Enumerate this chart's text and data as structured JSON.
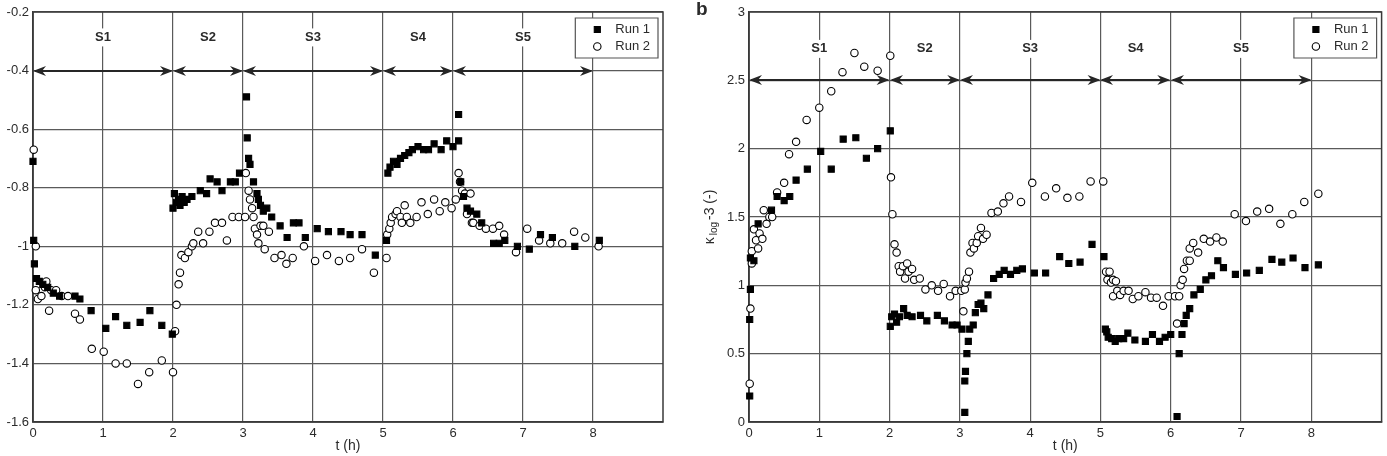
{
  "chart_data": [
    {
      "type": "scatter",
      "xlabel": "t (h)",
      "xlim": [
        0,
        9
      ],
      "xticks": [
        0,
        1,
        2,
        3,
        4,
        5,
        6,
        7,
        8
      ],
      "ylim": [
        -1.6,
        -0.2
      ],
      "yticks": [
        -0.2,
        -0.4,
        -0.6,
        -0.8,
        -1,
        -1.2,
        -1.4,
        -1.6
      ],
      "grid": true,
      "legend": "top right",
      "annotations": [
        "S1",
        "S2",
        "S3",
        "S4",
        "S5"
      ],
      "series": [
        {
          "name": "Run 1",
          "color": "#000000",
          "marker": "square",
          "x": [
            0,
            0.01,
            0.02,
            0.05,
            0.09,
            0.14,
            0.21,
            0.29,
            0.38,
            0.6,
            0.67,
            0.83,
            1.04,
            1.18,
            1.34,
            1.53,
            1.67,
            1.84,
            1.99,
            2,
            2.02,
            2.05,
            2.08,
            2.1,
            2.13,
            2.16,
            2.2,
            2.27,
            2.39,
            2.48,
            2.53,
            2.63,
            2.7,
            2.82,
            2.89,
            2.95,
            3.05,
            3.06,
            3.08,
            3.1,
            3.15,
            3.2,
            3.22,
            3.25,
            3.29,
            3.34,
            3.41,
            3.53,
            3.63,
            3.72,
            3.8,
            3.89,
            4.06,
            4.22,
            4.4,
            4.53,
            4.7,
            4.89,
            5.05,
            5.07,
            5.1,
            5.15,
            5.2,
            5.25,
            5.31,
            5.37,
            5.42,
            5.5,
            5.58,
            5.65,
            5.73,
            5.83,
            5.91,
            6,
            6.08,
            6.08,
            6.11,
            6.15,
            6.2,
            6.25,
            6.34,
            6.41,
            6.58,
            6.66,
            6.74,
            6.92,
            7.09,
            7.25,
            7.42,
            7.74,
            8.09
          ],
          "values": [
            -0.71,
            -0.98,
            -1.06,
            -1.11,
            -1.12,
            -1.13,
            -1.14,
            -1.16,
            -1.17,
            -1.17,
            -1.18,
            -1.22,
            -1.28,
            -1.24,
            -1.27,
            -1.26,
            -1.22,
            -1.27,
            -1.3,
            -0.87,
            -0.82,
            -0.85,
            -0.84,
            -0.86,
            -0.83,
            -0.85,
            -0.84,
            -0.83,
            -0.81,
            -0.82,
            -0.77,
            -0.78,
            -0.81,
            -0.78,
            -0.78,
            -0.75,
            -0.49,
            -0.63,
            -0.7,
            -0.72,
            -0.78,
            -0.82,
            -0.84,
            -0.86,
            -0.88,
            -0.87,
            -0.9,
            -0.93,
            -0.97,
            -0.92,
            -0.92,
            -0.97,
            -0.94,
            -0.95,
            -0.95,
            -0.96,
            -0.96,
            -1.03,
            -0.98,
            -0.75,
            -0.73,
            -0.71,
            -0.72,
            -0.7,
            -0.69,
            -0.68,
            -0.67,
            -0.66,
            -0.67,
            -0.67,
            -0.65,
            -0.67,
            -0.64,
            -0.66,
            -0.64,
            -0.55,
            -0.78,
            -0.83,
            -0.87,
            -0.88,
            -0.89,
            -0.92,
            -0.99,
            -0.99,
            -0.98,
            -1,
            -1.01,
            -0.96,
            -0.97,
            -1,
            -0.98
          ]
        },
        {
          "name": "Run 2",
          "color": "#000000",
          "marker": "circle",
          "x": [
            0.01,
            0.04,
            0.04,
            0.07,
            0.12,
            0.17,
            0.19,
            0.23,
            0.26,
            0.33,
            0.41,
            0.5,
            0.6,
            0.67,
            0.84,
            1.01,
            1.18,
            1.34,
            1.5,
            1.66,
            1.84,
            2,
            2.03,
            2.05,
            2.08,
            2.1,
            2.12,
            2.17,
            2.22,
            2.27,
            2.29,
            2.36,
            2.43,
            2.52,
            2.6,
            2.7,
            2.77,
            2.85,
            2.94,
            3.03,
            3.04,
            3.08,
            3.1,
            3.13,
            3.15,
            3.17,
            3.2,
            3.22,
            3.25,
            3.29,
            3.31,
            3.37,
            3.45,
            3.55,
            3.62,
            3.71,
            3.87,
            4.03,
            4.2,
            4.37,
            4.53,
            4.7,
            4.87,
            5.05,
            5.06,
            5.09,
            5.11,
            5.13,
            5.18,
            5.2,
            5.25,
            5.27,
            5.31,
            5.34,
            5.39,
            5.48,
            5.55,
            5.64,
            5.73,
            5.81,
            5.89,
            5.98,
            6.04,
            6.08,
            6.1,
            6.13,
            6.17,
            6.2,
            6.25,
            6.27,
            6.29,
            6.38,
            6.47,
            6.57,
            6.66,
            6.73,
            6.9,
            7.06,
            7.23,
            7.39,
            7.56,
            7.73,
            7.89,
            8.08
          ],
          "values": [
            -0.67,
            -1,
            -1.15,
            -1.18,
            -1.17,
            -1.14,
            -1.12,
            -1.22,
            -1.15,
            -1.15,
            -1.17,
            -1.17,
            -1.23,
            -1.25,
            -1.35,
            -1.36,
            -1.4,
            -1.4,
            -1.47,
            -1.43,
            -1.39,
            -1.43,
            -1.29,
            -1.2,
            -1.13,
            -1.09,
            -1.03,
            -1.04,
            -1.02,
            -1,
            -0.99,
            -0.95,
            -0.99,
            -0.95,
            -0.92,
            -0.92,
            -0.98,
            -0.9,
            -0.9,
            -0.9,
            -0.75,
            -0.81,
            -0.84,
            -0.87,
            -0.9,
            -0.94,
            -0.96,
            -0.99,
            -0.93,
            -0.93,
            -1.01,
            -0.95,
            -1.04,
            -1.03,
            -1.06,
            -1.04,
            -1,
            -1.05,
            -1.03,
            -1.05,
            -1.04,
            -1.01,
            -1.09,
            -1.04,
            -0.96,
            -0.94,
            -0.92,
            -0.9,
            -0.89,
            -0.88,
            -0.9,
            -0.92,
            -0.86,
            -0.9,
            -0.92,
            -0.9,
            -0.85,
            -0.89,
            -0.84,
            -0.88,
            -0.85,
            -0.87,
            -0.84,
            -0.75,
            -0.78,
            -0.81,
            -0.82,
            -0.89,
            -0.82,
            -0.92,
            -0.92,
            -0.93,
            -0.94,
            -0.94,
            -0.93,
            -0.96,
            -1.02,
            -0.94,
            -0.98,
            -0.99,
            -0.99,
            -0.95,
            -0.97,
            -1
          ]
        }
      ]
    },
    {
      "type": "scatter",
      "title": "b",
      "xlabel": "t (h)",
      "ylabel": "κ$_{log}$-3 (-)",
      "xlim": [
        0,
        9
      ],
      "xticks": [
        0,
        1,
        2,
        3,
        4,
        5,
        6,
        7,
        8
      ],
      "ylim": [
        0,
        3
      ],
      "yticks": [
        0,
        0.5,
        1,
        1.5,
        2,
        2.5,
        3
      ],
      "grid": true,
      "legend": "top right",
      "annotations": [
        "S1",
        "S2",
        "S3",
        "S4",
        "S5"
      ],
      "series": [
        {
          "name": "Run 1",
          "color": "#000000",
          "marker": "square",
          "x": [
            0.01,
            0.01,
            0.02,
            0.02,
            0.07,
            0.13,
            0.32,
            0.4,
            0.5,
            0.58,
            0.67,
            0.83,
            1.02,
            1.17,
            1.34,
            1.52,
            1.67,
            1.83,
            2.01,
            2.01,
            2.03,
            2.07,
            2.1,
            2.14,
            2.2,
            2.25,
            2.32,
            2.44,
            2.53,
            2.68,
            2.78,
            2.89,
            2.96,
            3.03,
            3.07,
            3.07,
            3.08,
            3.1,
            3.12,
            3.14,
            3.19,
            3.22,
            3.26,
            3.3,
            3.34,
            3.4,
            3.48,
            3.56,
            3.63,
            3.72,
            3.81,
            3.89,
            4.06,
            4.22,
            4.42,
            4.55,
            4.71,
            4.88,
            5.05,
            5.07,
            5.09,
            5.11,
            5.16,
            5.21,
            5.26,
            5.33,
            5.39,
            5.49,
            5.64,
            5.74,
            5.84,
            5.92,
            6,
            6.09,
            6.12,
            6.16,
            6.19,
            6.22,
            6.27,
            6.33,
            6.42,
            6.5,
            6.58,
            6.67,
            6.75,
            6.92,
            7.08,
            7.26,
            7.44,
            7.58,
            7.74,
            7.91,
            8.1
          ],
          "values": [
            0.19,
            0.75,
            0.97,
            1.2,
            1.18,
            1.45,
            1.55,
            1.65,
            1.62,
            1.65,
            1.77,
            1.85,
            1.98,
            1.85,
            2.07,
            2.08,
            1.93,
            2,
            2.13,
            0.7,
            0.77,
            0.79,
            0.73,
            0.77,
            0.83,
            0.78,
            0.77,
            0.78,
            0.74,
            0.78,
            0.74,
            0.71,
            0.71,
            0.68,
            0.07,
            0.3,
            0.37,
            0.5,
            0.59,
            0.68,
            0.71,
            0.8,
            0.86,
            0.87,
            0.83,
            0.93,
            1.05,
            1.08,
            1.11,
            1.08,
            1.11,
            1.12,
            1.09,
            1.09,
            1.21,
            1.16,
            1.17,
            1.3,
            1.21,
            0.68,
            0.66,
            0.62,
            0.61,
            0.59,
            0.61,
            0.61,
            0.65,
            0.6,
            0.59,
            0.64,
            0.59,
            0.62,
            0.64,
            0.04,
            0.5,
            0.64,
            0.72,
            0.78,
            0.83,
            0.93,
            0.97,
            1.04,
            1.07,
            1.18,
            1.13,
            1.08,
            1.09,
            1.11,
            1.19,
            1.17,
            1.2,
            1.13,
            1.15
          ]
        },
        {
          "name": "Run 2",
          "color": "#000000",
          "marker": "circle",
          "x": [
            0.01,
            0.02,
            0.04,
            0.04,
            0.07,
            0.1,
            0.13,
            0.15,
            0.19,
            0.21,
            0.25,
            0.29,
            0.33,
            0.4,
            0.5,
            0.57,
            0.67,
            0.82,
            1,
            1.17,
            1.33,
            1.5,
            1.64,
            1.83,
            2.01,
            2.02,
            2.04,
            2.07,
            2.1,
            2.13,
            2.15,
            2.19,
            2.22,
            2.25,
            2.27,
            2.32,
            2.35,
            2.43,
            2.51,
            2.6,
            2.69,
            2.77,
            2.86,
            2.94,
            3.02,
            3.05,
            3.07,
            3.08,
            3.1,
            3.13,
            3.15,
            3.18,
            3.2,
            3.24,
            3.26,
            3.3,
            3.33,
            3.38,
            3.45,
            3.54,
            3.62,
            3.7,
            3.87,
            4.03,
            4.21,
            4.37,
            4.53,
            4.7,
            4.86,
            5.04,
            5.08,
            5.1,
            5.13,
            5.15,
            5.18,
            5.18,
            5.22,
            5.24,
            5.28,
            5.33,
            5.4,
            5.46,
            5.54,
            5.64,
            5.72,
            5.8,
            5.89,
            5.97,
            6.06,
            6.09,
            6.12,
            6.14,
            6.17,
            6.19,
            6.23,
            6.27,
            6.27,
            6.32,
            6.39,
            6.47,
            6.56,
            6.65,
            6.74,
            6.91,
            7.07,
            7.23,
            7.4,
            7.56,
            7.73,
            7.9,
            8.1
          ],
          "values": [
            0.28,
            0.83,
            1.16,
            1.25,
            1.41,
            1.33,
            1.27,
            1.38,
            1.34,
            1.55,
            1.45,
            1.5,
            1.5,
            1.68,
            1.75,
            1.96,
            2.05,
            2.21,
            2.3,
            2.42,
            2.56,
            2.7,
            2.6,
            2.57,
            2.68,
            1.79,
            1.52,
            1.3,
            1.24,
            1.14,
            1.1,
            1.14,
            1.05,
            1.16,
            1.1,
            1.12,
            1.04,
            1.05,
            0.97,
            1,
            0.96,
            1.01,
            0.92,
            0.96,
            0.96,
            0.81,
            0.97,
            1.02,
            1.05,
            1.1,
            1.24,
            1.31,
            1.27,
            1.31,
            1.36,
            1.42,
            1.34,
            1.37,
            1.53,
            1.54,
            1.6,
            1.65,
            1.61,
            1.75,
            1.65,
            1.71,
            1.64,
            1.65,
            1.76,
            1.76,
            1.1,
            1.04,
            1.1,
            1.02,
            1.04,
            0.92,
            1.03,
            0.96,
            0.93,
            0.96,
            0.96,
            0.9,
            0.92,
            0.95,
            0.91,
            0.91,
            0.85,
            0.92,
            0.92,
            0.72,
            0.92,
            1,
            1.04,
            1.12,
            1.18,
            1.18,
            1.27,
            1.31,
            1.24,
            1.34,
            1.32,
            1.35,
            1.32,
            1.52,
            1.47,
            1.54,
            1.56,
            1.45,
            1.52,
            1.61,
            1.67
          ]
        }
      ]
    }
  ]
}
